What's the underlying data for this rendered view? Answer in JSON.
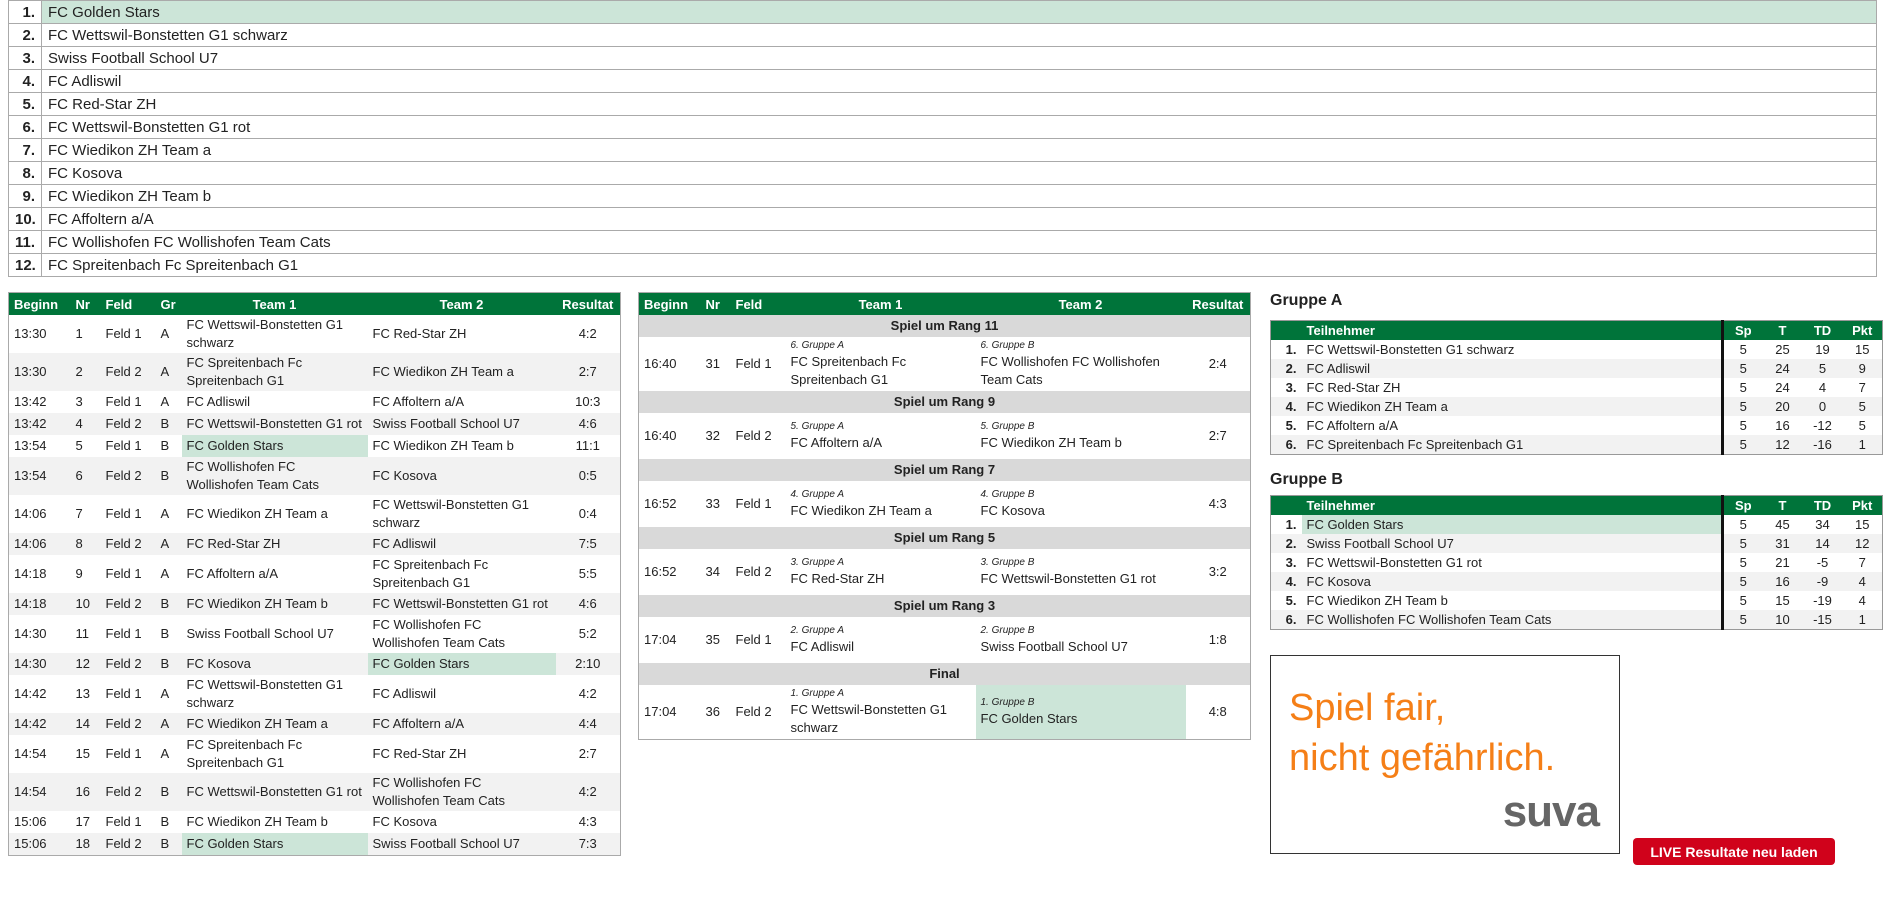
{
  "colors": {
    "header_green": "#00743a",
    "highlight": "#cce5d8",
    "button_red": "#d0021b",
    "ad_orange": "#f57f17"
  },
  "ranking": [
    {
      "rank": "1.",
      "team": "FC Golden Stars",
      "highlight": true
    },
    {
      "rank": "2.",
      "team": "FC Wettswil-Bonstetten G1 schwarz"
    },
    {
      "rank": "3.",
      "team": "Swiss Football School U7"
    },
    {
      "rank": "4.",
      "team": "FC Adliswil"
    },
    {
      "rank": "5.",
      "team": "FC Red-Star ZH"
    },
    {
      "rank": "6.",
      "team": "FC Wettswil-Bonstetten G1 rot"
    },
    {
      "rank": "7.",
      "team": "FC Wiedikon ZH Team a"
    },
    {
      "rank": "8.",
      "team": "FC Kosova"
    },
    {
      "rank": "9.",
      "team": "FC Wiedikon ZH Team b"
    },
    {
      "rank": "10.",
      "team": "FC Affoltern a/A"
    },
    {
      "rank": "11.",
      "team": "FC Wollishofen FC Wollishofen Team Cats"
    },
    {
      "rank": "12.",
      "team": "FC Spreitenbach Fc Spreitenbach G1"
    }
  ],
  "schedule": {
    "headers": [
      "Beginn",
      "Nr",
      "Feld",
      "Gr",
      "Team 1",
      "Team 2",
      "Resultat"
    ],
    "rows": [
      {
        "time": "13:30",
        "nr": "1",
        "field": "Feld 1",
        "group": "A",
        "team1": "FC Wettswil-Bonstetten G1 schwarz",
        "team2": "FC Red-Star ZH",
        "result": "4:2"
      },
      {
        "time": "13:30",
        "nr": "2",
        "field": "Feld 2",
        "group": "A",
        "team1": "FC Spreitenbach Fc Spreitenbach G1",
        "team2": "FC Wiedikon ZH Team a",
        "result": "2:7"
      },
      {
        "time": "13:42",
        "nr": "3",
        "field": "Feld 1",
        "group": "A",
        "team1": "FC Adliswil",
        "team2": "FC Affoltern a/A",
        "result": "10:3"
      },
      {
        "time": "13:42",
        "nr": "4",
        "field": "Feld 2",
        "group": "B",
        "team1": "FC Wettswil-Bonstetten G1 rot",
        "team2": "Swiss Football School U7",
        "result": "4:6"
      },
      {
        "time": "13:54",
        "nr": "5",
        "field": "Feld 1",
        "group": "B",
        "team1": "FC Golden Stars",
        "team2": "FC Wiedikon ZH Team b",
        "result": "11:1",
        "hl1": true
      },
      {
        "time": "13:54",
        "nr": "6",
        "field": "Feld 2",
        "group": "B",
        "team1": "FC Wollishofen FC Wollishofen Team Cats",
        "team2": "FC Kosova",
        "result": "0:5"
      },
      {
        "time": "14:06",
        "nr": "7",
        "field": "Feld 1",
        "group": "A",
        "team1": "FC Wiedikon ZH Team a",
        "team2": "FC Wettswil-Bonstetten G1 schwarz",
        "result": "0:4"
      },
      {
        "time": "14:06",
        "nr": "8",
        "field": "Feld 2",
        "group": "A",
        "team1": "FC Red-Star ZH",
        "team2": "FC Adliswil",
        "result": "7:5"
      },
      {
        "time": "14:18",
        "nr": "9",
        "field": "Feld 1",
        "group": "A",
        "team1": "FC Affoltern a/A",
        "team2": "FC Spreitenbach Fc Spreitenbach G1",
        "result": "5:5"
      },
      {
        "time": "14:18",
        "nr": "10",
        "field": "Feld 2",
        "group": "B",
        "team1": "FC Wiedikon ZH Team b",
        "team2": "FC Wettswil-Bonstetten G1 rot",
        "result": "4:6"
      },
      {
        "time": "14:30",
        "nr": "11",
        "field": "Feld 1",
        "group": "B",
        "team1": "Swiss Football School U7",
        "team2": "FC Wollishofen FC Wollishofen Team Cats",
        "result": "5:2"
      },
      {
        "time": "14:30",
        "nr": "12",
        "field": "Feld 2",
        "group": "B",
        "team1": "FC Kosova",
        "team2": "FC Golden Stars",
        "result": "2:10",
        "hl2": true
      },
      {
        "time": "14:42",
        "nr": "13",
        "field": "Feld 1",
        "group": "A",
        "team1": "FC Wettswil-Bonstetten G1 schwarz",
        "team2": "FC Adliswil",
        "result": "4:2"
      },
      {
        "time": "14:42",
        "nr": "14",
        "field": "Feld 2",
        "group": "A",
        "team1": "FC Wiedikon ZH Team a",
        "team2": "FC Affoltern a/A",
        "result": "4:4"
      },
      {
        "time": "14:54",
        "nr": "15",
        "field": "Feld 1",
        "group": "A",
        "team1": "FC Spreitenbach Fc Spreitenbach G1",
        "team2": "FC Red-Star ZH",
        "result": "2:7"
      },
      {
        "time": "14:54",
        "nr": "16",
        "field": "Feld 2",
        "group": "B",
        "team1": "FC Wettswil-Bonstetten G1 rot",
        "team2": "FC Wollishofen FC Wollishofen Team Cats",
        "result": "4:2"
      },
      {
        "time": "15:06",
        "nr": "17",
        "field": "Feld 1",
        "group": "B",
        "team1": "FC Wiedikon ZH Team b",
        "team2": "FC Kosova",
        "result": "4:3"
      },
      {
        "time": "15:06",
        "nr": "18",
        "field": "Feld 2",
        "group": "B",
        "team1": "FC Golden Stars",
        "team2": "Swiss Football School U7",
        "result": "7:3",
        "hl1": true
      }
    ]
  },
  "finals": {
    "headers": [
      "Beginn",
      "Nr",
      "Feld",
      "Team 1",
      "Team 2",
      "Resultat"
    ],
    "sections": [
      {
        "title": "Spiel um Rang 11",
        "time": "16:40",
        "nr": "31",
        "field": "Feld 1",
        "team1_label": "6. Gruppe A",
        "team1": "FC Spreitenbach Fc Spreitenbach G1",
        "team2_label": "6. Gruppe B",
        "team2": "FC Wollishofen FC Wollishofen Team Cats",
        "result": "2:4"
      },
      {
        "title": "Spiel um Rang 9",
        "time": "16:40",
        "nr": "32",
        "field": "Feld 2",
        "team1_label": "5. Gruppe A",
        "team1": "FC Affoltern a/A",
        "team2_label": "5. Gruppe B",
        "team2": "FC Wiedikon ZH Team b",
        "result": "2:7"
      },
      {
        "title": "Spiel um Rang 7",
        "time": "16:52",
        "nr": "33",
        "field": "Feld 1",
        "team1_label": "4. Gruppe A",
        "team1": "FC Wiedikon ZH Team a",
        "team2_label": "4. Gruppe B",
        "team2": "FC Kosova",
        "result": "4:3"
      },
      {
        "title": "Spiel um Rang 5",
        "time": "16:52",
        "nr": "34",
        "field": "Feld 2",
        "team1_label": "3. Gruppe A",
        "team1": "FC Red-Star ZH",
        "team2_label": "3. Gruppe B",
        "team2": "FC Wettswil-Bonstetten G1 rot",
        "result": "3:2"
      },
      {
        "title": "Spiel um Rang 3",
        "time": "17:04",
        "nr": "35",
        "field": "Feld 1",
        "team1_label": "2. Gruppe A",
        "team1": "FC Adliswil",
        "team2_label": "2. Gruppe B",
        "team2": "Swiss Football School U7",
        "result": "1:8"
      },
      {
        "title": "Final",
        "time": "17:04",
        "nr": "36",
        "field": "Feld 2",
        "team1_label": "1. Gruppe A",
        "team1": "FC Wettswil-Bonstetten G1 schwarz",
        "team2_label": "1. Gruppe B",
        "team2": "FC Golden Stars",
        "result": "4:8",
        "hl2": true
      }
    ]
  },
  "groups": [
    {
      "title": "Gruppe A",
      "headers": [
        "",
        "Teilnehmer",
        "Sp",
        "T",
        "TD",
        "Pkt"
      ],
      "rows": [
        {
          "rank": "1.",
          "team": "FC Wettswil-Bonstetten G1 schwarz",
          "sp": "5",
          "t": "25",
          "td": "19",
          "pkt": "15"
        },
        {
          "rank": "2.",
          "team": "FC Adliswil",
          "sp": "5",
          "t": "24",
          "td": "5",
          "pkt": "9"
        },
        {
          "rank": "3.",
          "team": "FC Red-Star ZH",
          "sp": "5",
          "t": "24",
          "td": "4",
          "pkt": "7"
        },
        {
          "rank": "4.",
          "team": "FC Wiedikon ZH Team a",
          "sp": "5",
          "t": "20",
          "td": "0",
          "pkt": "5"
        },
        {
          "rank": "5.",
          "team": "FC Affoltern a/A",
          "sp": "5",
          "t": "16",
          "td": "-12",
          "pkt": "5"
        },
        {
          "rank": "6.",
          "team": "FC Spreitenbach Fc Spreitenbach G1",
          "sp": "5",
          "t": "12",
          "td": "-16",
          "pkt": "1"
        }
      ]
    },
    {
      "title": "Gruppe B",
      "headers": [
        "",
        "Teilnehmer",
        "Sp",
        "T",
        "TD",
        "Pkt"
      ],
      "rows": [
        {
          "rank": "1.",
          "team": "FC Golden Stars",
          "sp": "5",
          "t": "45",
          "td": "34",
          "pkt": "15",
          "highlight": true
        },
        {
          "rank": "2.",
          "team": "Swiss Football School U7",
          "sp": "5",
          "t": "31",
          "td": "14",
          "pkt": "12"
        },
        {
          "rank": "3.",
          "team": "FC Wettswil-Bonstetten G1 rot",
          "sp": "5",
          "t": "21",
          "td": "-5",
          "pkt": "7"
        },
        {
          "rank": "4.",
          "team": "FC Kosova",
          "sp": "5",
          "t": "16",
          "td": "-9",
          "pkt": "4"
        },
        {
          "rank": "5.",
          "team": "FC Wiedikon ZH Team b",
          "sp": "5",
          "t": "15",
          "td": "-19",
          "pkt": "4"
        },
        {
          "rank": "6.",
          "team": "FC Wollishofen FC Wollishofen Team Cats",
          "sp": "5",
          "t": "10",
          "td": "-15",
          "pkt": "1"
        }
      ]
    }
  ],
  "ad": {
    "line1": "Spiel fair,",
    "line2": "nicht gefährlich.",
    "logo": "suva"
  },
  "reload_button": "LIVE Resultate neu laden"
}
